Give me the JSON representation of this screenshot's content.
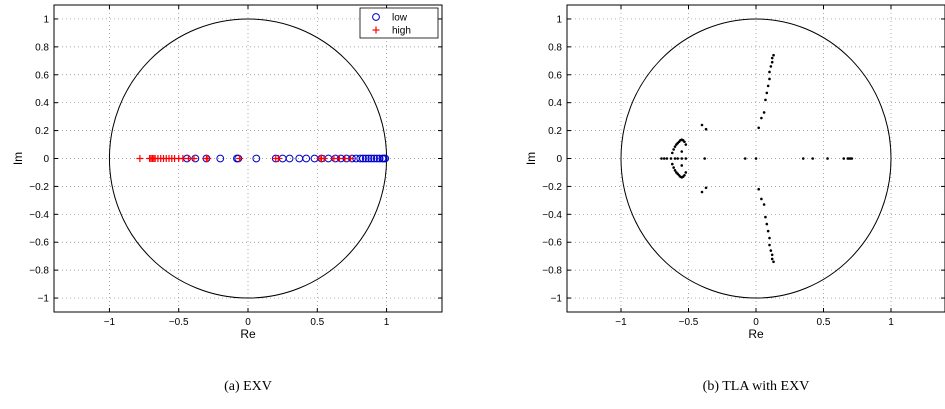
{
  "chart_data": [
    {
      "type": "scatter",
      "caption": "(a)  EXV",
      "xlabel": "Re",
      "ylabel": "Im",
      "xlim": [
        -1.4,
        1.4
      ],
      "ylim": [
        -1.1,
        1.1
      ],
      "xticks": [
        -1,
        -0.5,
        0,
        0.5,
        1
      ],
      "xtick_labels": [
        "−1",
        "−0.5",
        "0",
        "0.5",
        "1"
      ],
      "yticks": [
        -1,
        -0.8,
        -0.6,
        -0.4,
        -0.2,
        0,
        0.2,
        0.4,
        0.6,
        0.8,
        1
      ],
      "ytick_labels": [
        "−1",
        "−0.8",
        "−0.6",
        "−0.4",
        "−0.2",
        "0",
        "0.2",
        "0.4",
        "0.6",
        "0.8",
        "1"
      ],
      "grid": true,
      "unit_circle": true,
      "legend_position": "top-right",
      "series": [
        {
          "name": "low",
          "marker": "circle",
          "color": "#0000cc",
          "points": [
            [
              -0.44,
              0
            ],
            [
              -0.38,
              0
            ],
            [
              -0.3,
              0
            ],
            [
              -0.2,
              0
            ],
            [
              -0.08,
              0
            ],
            [
              -0.07,
              0
            ],
            [
              0.06,
              0
            ],
            [
              0.2,
              0
            ],
            [
              0.25,
              0
            ],
            [
              0.3,
              0
            ],
            [
              0.37,
              0
            ],
            [
              0.42,
              0
            ],
            [
              0.48,
              0
            ],
            [
              0.53,
              0
            ],
            [
              0.58,
              0
            ],
            [
              0.63,
              0
            ],
            [
              0.67,
              0
            ],
            [
              0.71,
              0
            ],
            [
              0.75,
              0
            ],
            [
              0.78,
              0
            ],
            [
              0.81,
              0
            ],
            [
              0.83,
              0
            ],
            [
              0.85,
              0
            ],
            [
              0.87,
              0
            ],
            [
              0.89,
              0
            ],
            [
              0.91,
              0
            ],
            [
              0.93,
              0
            ],
            [
              0.95,
              0
            ],
            [
              0.97,
              0
            ],
            [
              0.98,
              0
            ],
            [
              0.99,
              0
            ]
          ]
        },
        {
          "name": "high",
          "marker": "plus",
          "color": "#ff0000",
          "points": [
            [
              -0.78,
              0
            ],
            [
              -0.71,
              0
            ],
            [
              -0.7,
              0
            ],
            [
              -0.69,
              0
            ],
            [
              -0.68,
              0
            ],
            [
              -0.67,
              0
            ],
            [
              -0.65,
              0
            ],
            [
              -0.63,
              0
            ],
            [
              -0.61,
              0
            ],
            [
              -0.59,
              0
            ],
            [
              -0.57,
              0
            ],
            [
              -0.55,
              0
            ],
            [
              -0.53,
              0
            ],
            [
              -0.5,
              0
            ],
            [
              -0.47,
              0
            ],
            [
              -0.43,
              0
            ],
            [
              -0.39,
              0
            ],
            [
              -0.3,
              0
            ],
            [
              -0.29,
              0
            ],
            [
              -0.06,
              0
            ],
            [
              0.2,
              0
            ],
            [
              0.22,
              0
            ],
            [
              0.52,
              0
            ],
            [
              0.53,
              0
            ],
            [
              0.55,
              0
            ],
            [
              0.62,
              0
            ],
            [
              0.66,
              0
            ],
            [
              0.7,
              0
            ],
            [
              0.74,
              0
            ]
          ]
        }
      ]
    },
    {
      "type": "scatter",
      "caption": "(b)  TLA with EXV",
      "xlabel": "Re",
      "ylabel": "Im",
      "xlim": [
        -1.4,
        1.4
      ],
      "ylim": [
        -1.1,
        1.1
      ],
      "xticks": [
        -1,
        -0.5,
        0,
        0.5,
        1
      ],
      "xtick_labels": [
        "−1",
        "−0.5",
        "0",
        "0.5",
        "1"
      ],
      "yticks": [
        -1,
        -0.8,
        -0.6,
        -0.4,
        -0.2,
        0,
        0.2,
        0.4,
        0.6,
        0.8,
        1
      ],
      "ytick_labels": [
        "−1",
        "−0.8",
        "−0.6",
        "−0.4",
        "−0.2",
        "0",
        "0.2",
        "0.4",
        "0.6",
        "0.8",
        "1"
      ],
      "grid": true,
      "unit_circle": true,
      "series": [
        {
          "marker": "dot",
          "color": "#000000",
          "points": [
            [
              -0.7,
              0
            ],
            [
              -0.68,
              0
            ],
            [
              -0.66,
              0
            ],
            [
              -0.63,
              0
            ],
            [
              -0.6,
              0
            ],
            [
              -0.58,
              0
            ],
            [
              -0.55,
              0
            ],
            [
              -0.52,
              0
            ],
            [
              -0.38,
              0
            ],
            [
              -0.08,
              0
            ],
            [
              0,
              0
            ],
            [
              0.35,
              0
            ],
            [
              0.42,
              0
            ],
            [
              0.53,
              0
            ],
            [
              0.65,
              0
            ],
            [
              0.68,
              0
            ],
            [
              0.69,
              0
            ],
            [
              0.7,
              0
            ],
            [
              0.71,
              0
            ],
            [
              -0.62,
              0.04
            ],
            [
              -0.62,
              -0.04
            ],
            [
              -0.61,
              0.065
            ],
            [
              -0.61,
              -0.065
            ],
            [
              -0.6,
              0.085
            ],
            [
              -0.6,
              -0.085
            ],
            [
              -0.59,
              0.1
            ],
            [
              -0.59,
              -0.1
            ],
            [
              -0.58,
              0.11
            ],
            [
              -0.58,
              -0.11
            ],
            [
              -0.57,
              0.12
            ],
            [
              -0.57,
              -0.12
            ],
            [
              -0.56,
              0.13
            ],
            [
              -0.56,
              -0.13
            ],
            [
              -0.55,
              0.135
            ],
            [
              -0.55,
              -0.135
            ],
            [
              -0.54,
              0.13
            ],
            [
              -0.54,
              -0.13
            ],
            [
              -0.53,
              0.12
            ],
            [
              -0.53,
              -0.12
            ],
            [
              -0.52,
              0.1
            ],
            [
              -0.52,
              -0.1
            ],
            [
              -0.55,
              0.05
            ],
            [
              -0.55,
              -0.05
            ],
            [
              -0.4,
              0.24
            ],
            [
              -0.4,
              -0.24
            ],
            [
              -0.37,
              0.21
            ],
            [
              -0.37,
              -0.21
            ],
            [
              0.02,
              0.22
            ],
            [
              0.02,
              -0.22
            ],
            [
              0.04,
              0.29
            ],
            [
              0.04,
              -0.29
            ],
            [
              0.06,
              0.33
            ],
            [
              0.06,
              -0.33
            ],
            [
              0.07,
              0.42
            ],
            [
              0.07,
              -0.42
            ],
            [
              0.08,
              0.47
            ],
            [
              0.08,
              -0.47
            ],
            [
              0.09,
              0.52
            ],
            [
              0.09,
              -0.52
            ],
            [
              0.1,
              0.57
            ],
            [
              0.1,
              -0.57
            ],
            [
              0.1,
              0.62
            ],
            [
              0.1,
              -0.62
            ],
            [
              0.11,
              0.66
            ],
            [
              0.11,
              -0.66
            ],
            [
              0.12,
              0.69
            ],
            [
              0.12,
              -0.69
            ],
            [
              0.12,
              0.72
            ],
            [
              0.12,
              -0.72
            ],
            [
              0.13,
              0.74
            ],
            [
              0.13,
              -0.74
            ]
          ]
        }
      ]
    }
  ]
}
